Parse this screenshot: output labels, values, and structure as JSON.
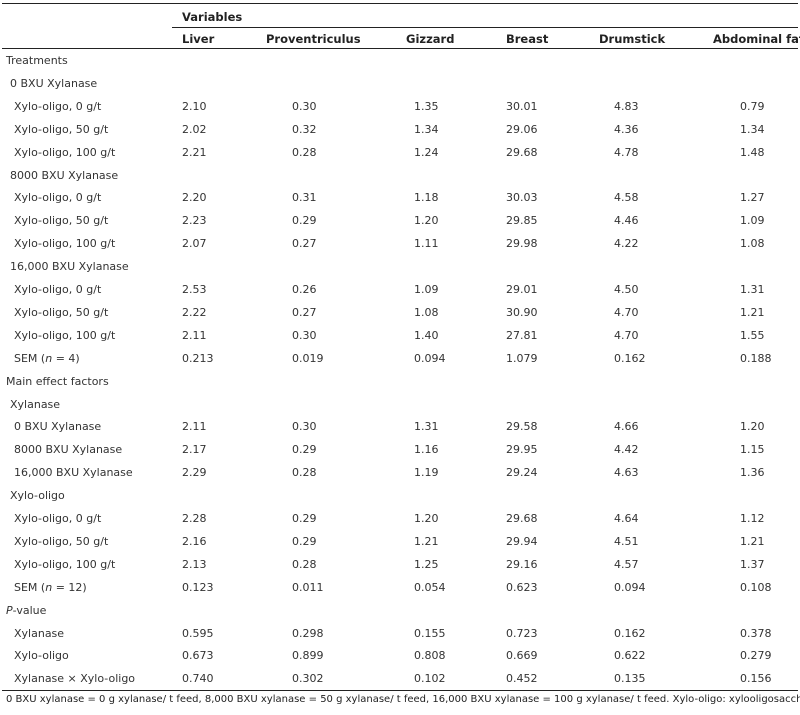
{
  "header": {
    "group_label": "Variables",
    "columns": [
      "Liver",
      "Proventriculus",
      "Gizzard",
      "Breast",
      "Drumstick",
      "Abdominal fat"
    ]
  },
  "rows": [
    {
      "label": "Treatments",
      "indent": 0,
      "values": []
    },
    {
      "label": "0 BXU Xylanase",
      "indent": 1,
      "values": []
    },
    {
      "label": "Xylo-oligo, 0 g/t",
      "indent": 2,
      "values": [
        "2.10",
        "0.30",
        "1.35",
        "30.01",
        "4.83",
        "0.79"
      ]
    },
    {
      "label": "Xylo-oligo, 50 g/t",
      "indent": 2,
      "values": [
        "2.02",
        "0.32",
        "1.34",
        "29.06",
        "4.36",
        "1.34"
      ]
    },
    {
      "label": "Xylo-oligo, 100 g/t",
      "indent": 2,
      "values": [
        "2.21",
        "0.28",
        "1.24",
        "29.68",
        "4.78",
        "1.48"
      ]
    },
    {
      "label": "8000 BXU Xylanase",
      "indent": 1,
      "values": []
    },
    {
      "label": "Xylo-oligo, 0 g/t",
      "indent": 2,
      "values": [
        "2.20",
        "0.31",
        "1.18",
        "30.03",
        "4.58",
        "1.27"
      ]
    },
    {
      "label": "Xylo-oligo, 50 g/t",
      "indent": 2,
      "values": [
        "2.23",
        "0.29",
        "1.20",
        "29.85",
        "4.46",
        "1.09"
      ]
    },
    {
      "label": "Xylo-oligo, 100 g/t",
      "indent": 2,
      "values": [
        "2.07",
        "0.27",
        "1.11",
        "29.98",
        "4.22",
        "1.08"
      ]
    },
    {
      "label": "16,000 BXU Xylanase",
      "indent": 1,
      "values": []
    },
    {
      "label": "Xylo-oligo, 0 g/t",
      "indent": 2,
      "values": [
        "2.53",
        "0.26",
        "1.09",
        "29.01",
        "4.50",
        "1.31"
      ]
    },
    {
      "label": "Xylo-oligo, 50 g/t",
      "indent": 2,
      "values": [
        "2.22",
        "0.27",
        "1.08",
        "30.90",
        "4.70",
        "1.21"
      ]
    },
    {
      "label": "Xylo-oligo, 100 g/t",
      "indent": 2,
      "values": [
        "2.11",
        "0.30",
        "1.40",
        "27.81",
        "4.70",
        "1.55"
      ]
    },
    {
      "label_prefix": "SEM (",
      "label_italic": "n",
      "label_suffix": " = 4)",
      "indent": 2,
      "values": [
        "0.213",
        "0.019",
        "0.094",
        "1.079",
        "0.162",
        "0.188"
      ]
    },
    {
      "label": "Main effect factors",
      "indent": 0,
      "values": []
    },
    {
      "label": "Xylanase",
      "indent": 1,
      "values": []
    },
    {
      "label": "0 BXU Xylanase",
      "indent": 2,
      "values": [
        "2.11",
        "0.30",
        "1.31",
        "29.58",
        "4.66",
        "1.20"
      ]
    },
    {
      "label": "8000 BXU Xylanase",
      "indent": 2,
      "values": [
        "2.17",
        "0.29",
        "1.16",
        "29.95",
        "4.42",
        "1.15"
      ]
    },
    {
      "label": "16,000 BXU Xylanase",
      "indent": 2,
      "values": [
        "2.29",
        "0.28",
        "1.19",
        "29.24",
        "4.63",
        "1.36"
      ]
    },
    {
      "label": "Xylo-oligo",
      "indent": 1,
      "values": []
    },
    {
      "label": "Xylo-oligo, 0 g/t",
      "indent": 2,
      "values": [
        "2.28",
        "0.29",
        "1.20",
        "29.68",
        "4.64",
        "1.12"
      ]
    },
    {
      "label": "Xylo-oligo, 50 g/t",
      "indent": 2,
      "values": [
        "2.16",
        "0.29",
        "1.21",
        "29.94",
        "4.51",
        "1.21"
      ]
    },
    {
      "label": "Xylo-oligo, 100 g/t",
      "indent": 2,
      "values": [
        "2.13",
        "0.28",
        "1.25",
        "29.16",
        "4.57",
        "1.37"
      ]
    },
    {
      "label_prefix": "SEM (",
      "label_italic": "n",
      "label_suffix": " = 12)",
      "indent": 2,
      "values": [
        "0.123",
        "0.011",
        "0.054",
        "0.623",
        "0.094",
        "0.108"
      ]
    },
    {
      "label_prefix": "",
      "label_italic": "P",
      "label_suffix": "-value",
      "indent": 0,
      "values": []
    },
    {
      "label": "Xylanase",
      "indent": 2,
      "values": [
        "0.595",
        "0.298",
        "0.155",
        "0.723",
        "0.162",
        "0.378"
      ]
    },
    {
      "label": "Xylo-oligo",
      "indent": 2,
      "values": [
        "0.673",
        "0.899",
        "0.808",
        "0.669",
        "0.622",
        "0.279"
      ]
    },
    {
      "label": "Xylanase × Xylo-oligo",
      "indent": 2,
      "values": [
        "0.740",
        "0.302",
        "0.102",
        "0.452",
        "0.135",
        "0.156"
      ]
    }
  ],
  "footnote": "0 BXU xylanase = 0 g xylanase/ t feed, 8,000 BXU xylanase = 50 g xylanase/ t feed, 16,000 BXU xylanase = 100 g xylanase/ t feed. Xylo-oligo: xylooligosaccharides"
}
